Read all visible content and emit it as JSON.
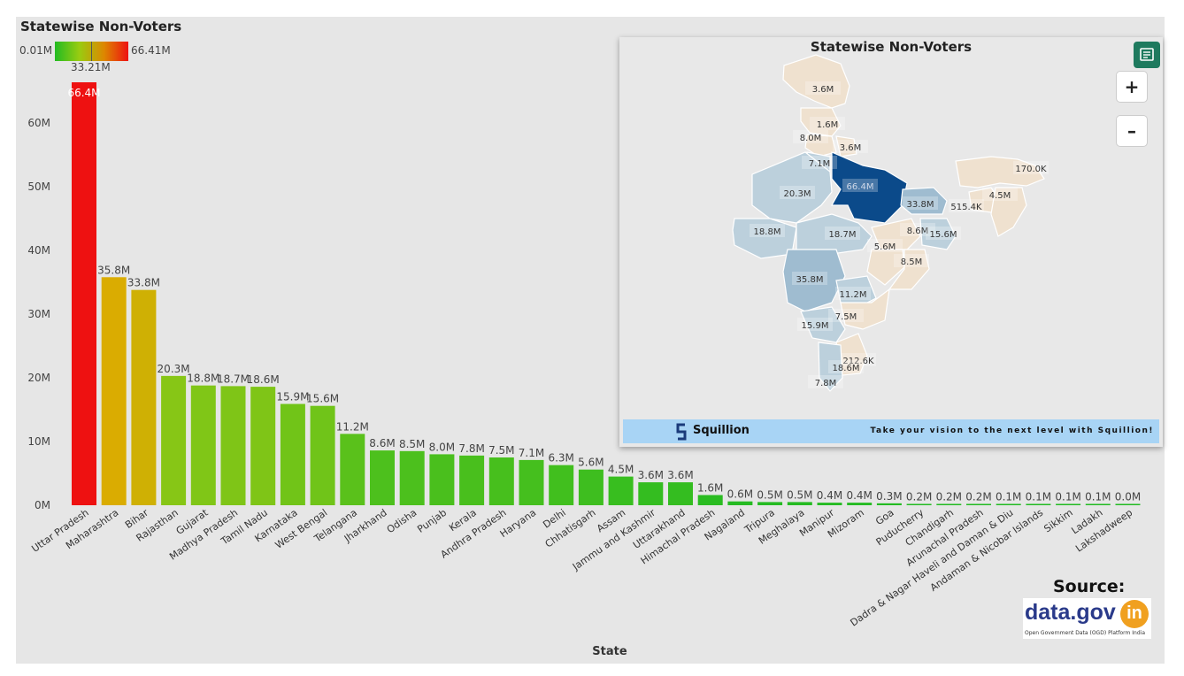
{
  "chart_data": {
    "type": "bar",
    "title": "Statewise Non-Voters",
    "xlabel": "State",
    "ylabel": "",
    "ylim": [
      0,
      66400000
    ],
    "yticks": [
      "0M",
      "10M",
      "20M",
      "30M",
      "40M",
      "50M",
      "60M"
    ],
    "legend": {
      "min": "0.01M",
      "mid": "33.21M",
      "max": "66.41M"
    },
    "categories": [
      "Uttar Pradesh",
      "Maharashtra",
      "Bihar",
      "Rajasthan",
      "Gujarat",
      "Madhya Pradesh",
      "Tamil Nadu",
      "Karnataka",
      "West Bengal",
      "Telangana",
      "Jharkhand",
      "Odisha",
      "Punjab",
      "Kerala",
      "Andhra Pradesh",
      "Haryana",
      "Delhi",
      "Chhatisgarh",
      "Assam",
      "Jammu and Kashmir",
      "Uttarakhand",
      "Himachal Pradesh",
      "Nagaland",
      "Tripura",
      "Meghalaya",
      "Manipur",
      "Mizoram",
      "Goa",
      "Puducherry",
      "Chandigarh",
      "Arunachal Pradesh",
      "Dadra & Nagar Haveli and Daman & Diu",
      "Andaman & Nicobar Islands",
      "Sikkim",
      "Ladakh",
      "Lakshadweep"
    ],
    "values": [
      66.4,
      35.8,
      33.8,
      20.3,
      18.8,
      18.7,
      18.6,
      15.9,
      15.6,
      11.2,
      8.6,
      8.5,
      8.0,
      7.8,
      7.5,
      7.1,
      6.3,
      5.6,
      4.5,
      3.6,
      3.6,
      1.6,
      0.6,
      0.5,
      0.5,
      0.4,
      0.4,
      0.3,
      0.2,
      0.2,
      0.2,
      0.1,
      0.1,
      0.1,
      0.1,
      0.0
    ],
    "value_labels": [
      "66.4M",
      "35.8M",
      "33.8M",
      "20.3M",
      "18.8M",
      "18.7M",
      "18.6M",
      "15.9M",
      "15.6M",
      "11.2M",
      "8.6M",
      "8.5M",
      "8.0M",
      "7.8M",
      "7.5M",
      "7.1M",
      "6.3M",
      "5.6M",
      "4.5M",
      "3.6M",
      "3.6M",
      "1.6M",
      "0.6M",
      "0.5M",
      "0.5M",
      "0.4M",
      "0.4M",
      "0.3M",
      "0.2M",
      "0.2M",
      "0.2M",
      "0.1M",
      "0.1M",
      "0.1M",
      "0.1M",
      "0.0M"
    ]
  },
  "map": {
    "title": "Statewise Non-Voters",
    "zoom_in": "+",
    "zoom_out": "–",
    "labels": [
      "3.6M",
      "1.6M",
      "8.0M",
      "3.6M",
      "7.1M",
      "66.4M",
      "170.0K",
      "20.3M",
      "4.5M",
      "33.8M",
      "515.4K",
      "18.8M",
      "18.7M",
      "8.6M",
      "15.6M",
      "5.6M",
      "8.5M",
      "35.8M",
      "11.2M",
      "7.5M",
      "15.9M",
      "212.6K",
      "18.6M",
      "7.8M"
    ],
    "colors": {
      "dark": "#0b4a8a",
      "mid": "#9fbcd0",
      "light": "#bcd0dc",
      "pale": "#efe1cf"
    }
  },
  "banner": {
    "brand": "Squillion",
    "tagline": "Take your vision to the next level with Squillion!"
  },
  "source": {
    "label": "Source:",
    "logo_text": "data.gov",
    "logo_badge": "in",
    "logo_sub": "Open Government Data (OGD) Platform India"
  }
}
